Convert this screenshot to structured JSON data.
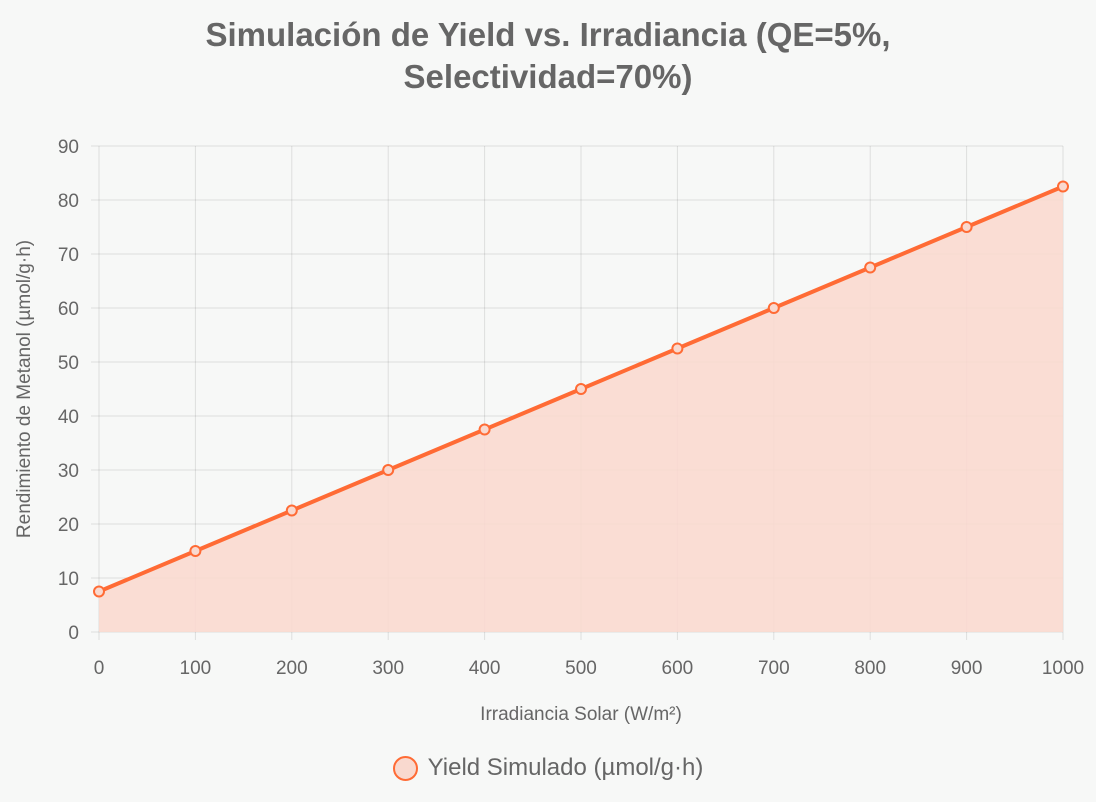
{
  "chart_data": {
    "type": "line",
    "title_lines": [
      "Simulación de Yield vs. Irradiancia (QE=5%,",
      "Selectividad=70%)"
    ],
    "xlabel": "Irradiancia Solar (W/m²)",
    "ylabel": "Rendimiento de Metanol (µmol/g·h)",
    "xlim": [
      0,
      1000
    ],
    "ylim": [
      0,
      90
    ],
    "xticks": [
      0,
      100,
      200,
      300,
      400,
      500,
      600,
      700,
      800,
      900,
      1000
    ],
    "yticks": [
      0,
      10,
      20,
      30,
      40,
      50,
      60,
      70,
      80,
      90
    ],
    "grid": true,
    "fill": true,
    "legend_position": "bottom",
    "series": [
      {
        "name": "Yield Simulado (µmol/g·h)",
        "color": "#ff6b35",
        "fill_color": "#f9d9cf",
        "x": [
          0,
          100,
          200,
          300,
          400,
          500,
          600,
          700,
          800,
          900,
          1000
        ],
        "y": [
          7.5,
          15,
          22.5,
          30,
          37.5,
          45,
          52.5,
          60,
          67.5,
          75,
          82.5
        ]
      }
    ]
  }
}
